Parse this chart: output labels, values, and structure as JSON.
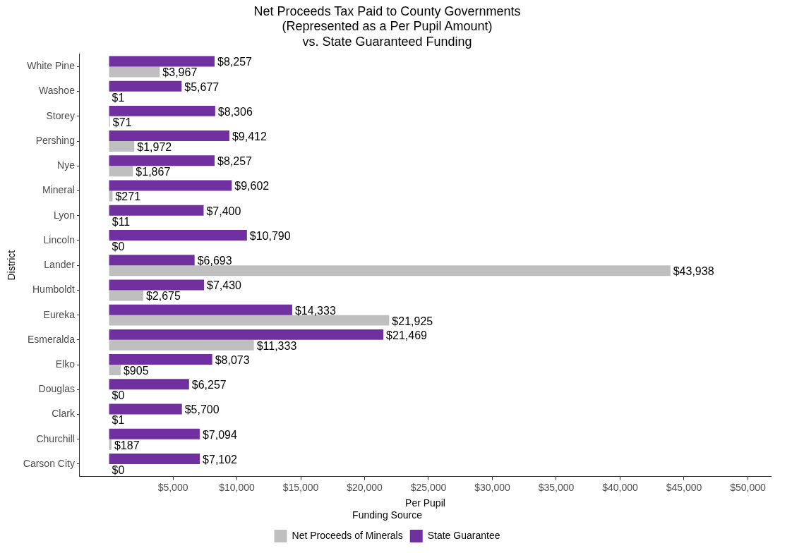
{
  "chart_data": {
    "type": "bar",
    "orientation": "horizontal",
    "title": "Net Proceeds Tax Paid to County Governments\n(Represented as a Per Pupil Amount)\nvs. State Guaranteed Funding",
    "xlabel": "Per Pupil",
    "ylabel": "District",
    "legend_title": "Funding Source",
    "legend": "bottom",
    "grid": false,
    "categories": [
      "White Pine",
      "Washoe",
      "Storey",
      "Pershing",
      "Nye",
      "Mineral",
      "Lyon",
      "Lincoln",
      "Lander",
      "Humboldt",
      "Eureka",
      "Esmeralda",
      "Elko",
      "Douglas",
      "Clark",
      "Churchill",
      "Carson City"
    ],
    "xlim": [
      -2300,
      51800
    ],
    "xticks": [
      {
        "value": 5000,
        "label": "$5,000"
      },
      {
        "value": 10000,
        "label": "$10,000"
      },
      {
        "value": 15000,
        "label": "$15,000"
      },
      {
        "value": 20000,
        "label": "$20,000"
      },
      {
        "value": 25000,
        "label": "$25,000"
      },
      {
        "value": 30000,
        "label": "$30,000"
      },
      {
        "value": 35000,
        "label": "$35,000"
      },
      {
        "value": 40000,
        "label": "$40,000"
      },
      {
        "value": 45000,
        "label": "$45,000"
      },
      {
        "value": 50000,
        "label": "$50,000"
      }
    ],
    "series": [
      {
        "name": "Net Proceeds of Minerals",
        "color": "#bfbfbf",
        "values": [
          3967,
          1,
          71,
          1972,
          1867,
          271,
          11,
          0,
          43938,
          2675,
          21925,
          11333,
          905,
          0,
          1,
          187,
          0
        ],
        "value_labels": [
          "$3,967",
          "$1",
          "$71",
          "$1,972",
          "$1,867",
          "$271",
          "$11",
          "$0",
          "$43,938",
          "$2,675",
          "$21,925",
          "$11,333",
          "$905",
          "$0",
          "$1",
          "$187",
          "$0"
        ]
      },
      {
        "name": "State Guarantee",
        "color": "#7030a0",
        "values": [
          8257,
          5677,
          8306,
          9412,
          8257,
          9602,
          7400,
          10790,
          6693,
          7430,
          14333,
          21469,
          8073,
          6257,
          5700,
          7094,
          7102
        ],
        "value_labels": [
          "$8,257",
          "$5,677",
          "$8,306",
          "$9,412",
          "$8,257",
          "$9,602",
          "$7,400",
          "$10,790",
          "$6,693",
          "$7,430",
          "$14,333",
          "$21,469",
          "$8,073",
          "$6,257",
          "$5,700",
          "$7,094",
          "$7,102"
        ]
      }
    ]
  }
}
